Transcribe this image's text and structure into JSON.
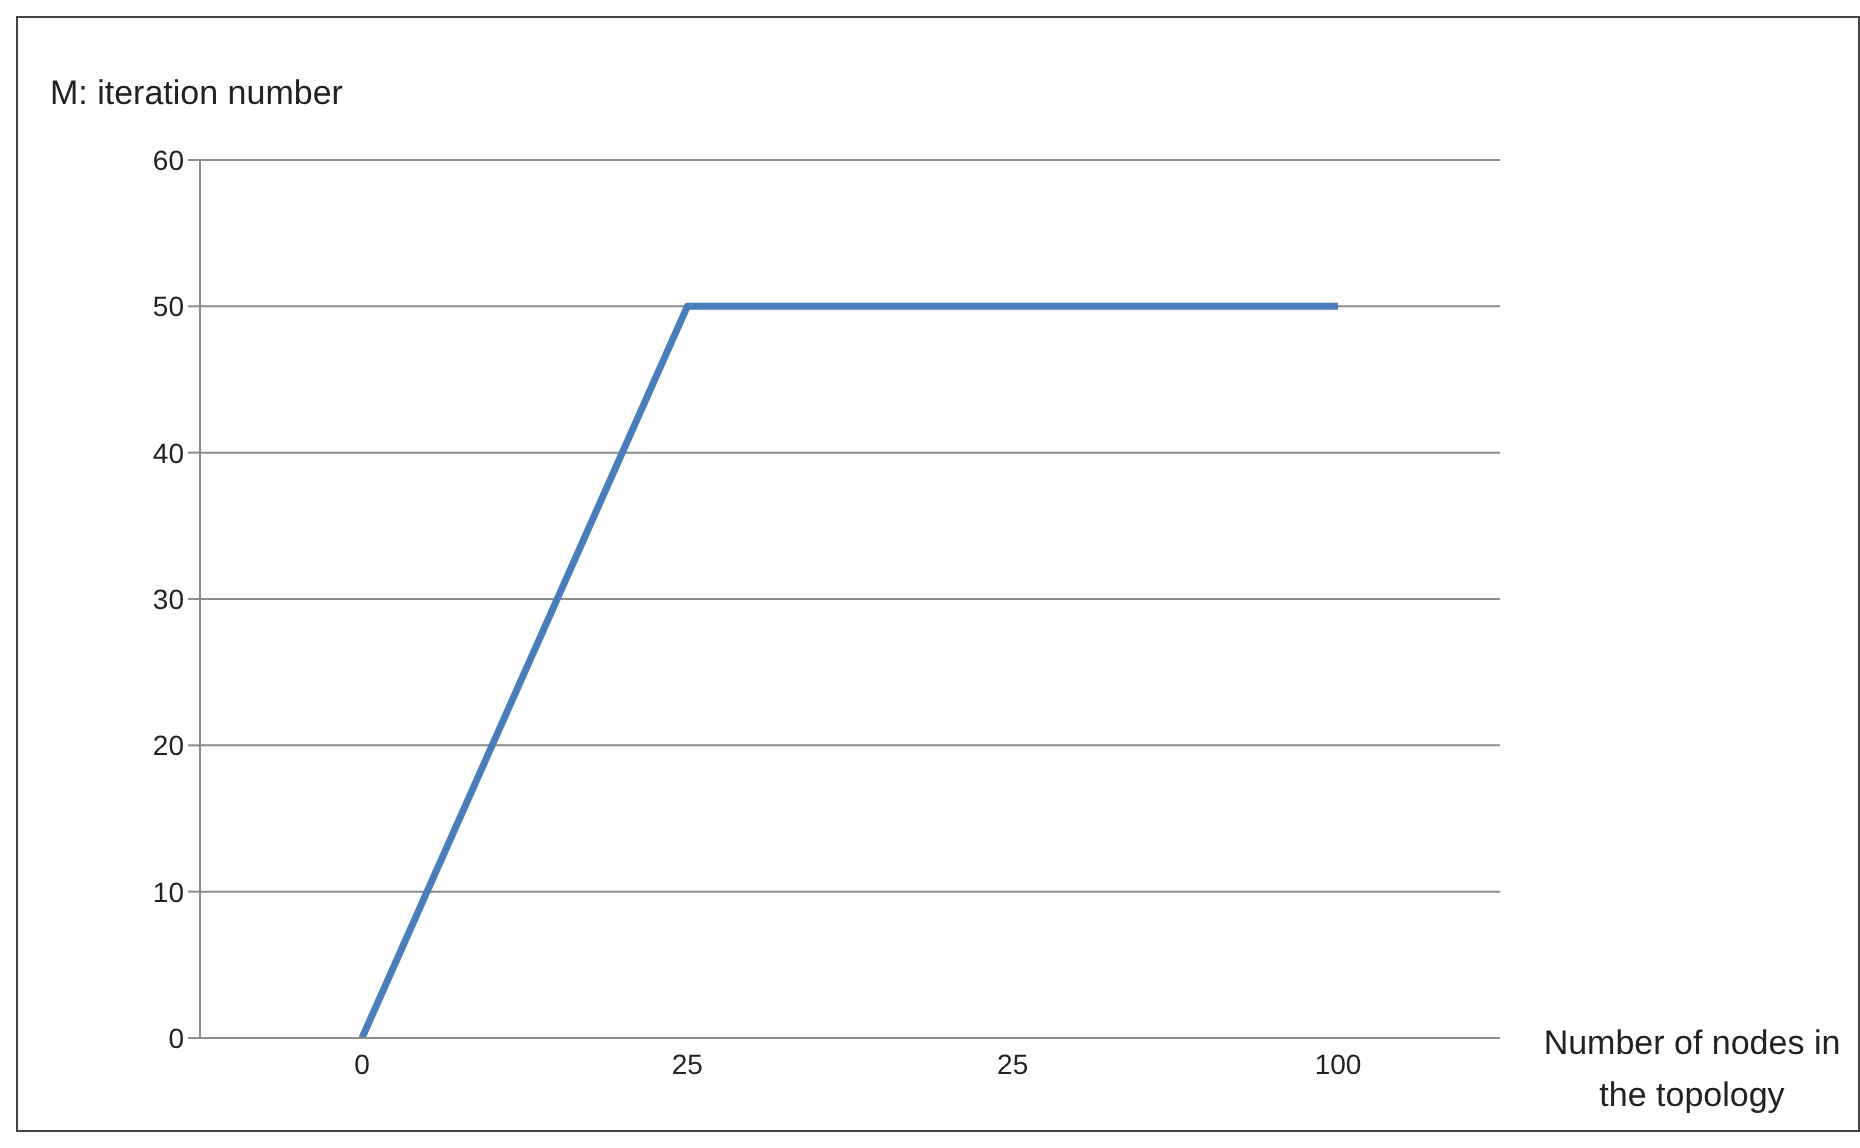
{
  "chart_data": {
    "type": "line",
    "xlabel": "Number of nodes in the topology",
    "ylabel": "M: iteration number",
    "categories": [
      "0",
      "25",
      "25",
      "100"
    ],
    "series": [
      {
        "color": "#4a7ebb",
        "values": [
          0,
          50,
          50,
          50
        ]
      }
    ],
    "ylim": [
      0,
      60
    ],
    "yticks": [
      0,
      10,
      20,
      30,
      40,
      50,
      60
    ],
    "grid": "y",
    "marker": "none",
    "line_style": "solid"
  }
}
